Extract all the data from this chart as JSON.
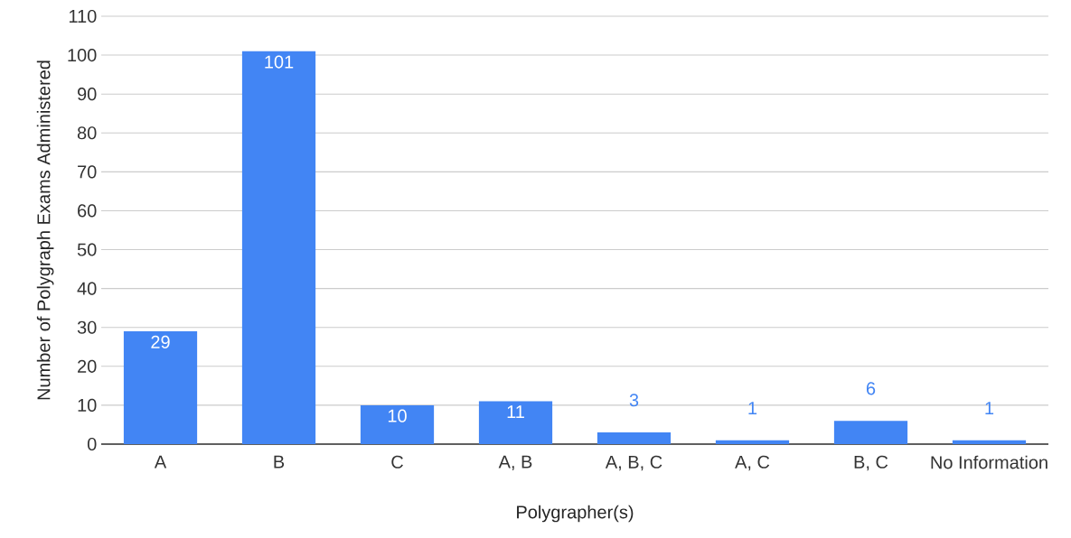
{
  "chart_data": {
    "type": "bar",
    "xlabel": "Polygrapher(s)",
    "ylabel": "Number of Polygraph Exams Administered",
    "categories": [
      "A",
      "B",
      "C",
      "A, B",
      "A, B, C",
      "A, C",
      "B, C",
      "No Information"
    ],
    "values": [
      29,
      101,
      10,
      11,
      3,
      1,
      6,
      1
    ],
    "color": "#4285f4",
    "ylim": [
      0,
      110
    ],
    "yticks": [
      0,
      10,
      20,
      30,
      40,
      50,
      60,
      70,
      80,
      90,
      100,
      110
    ],
    "grid": "y",
    "data_labels": true
  }
}
